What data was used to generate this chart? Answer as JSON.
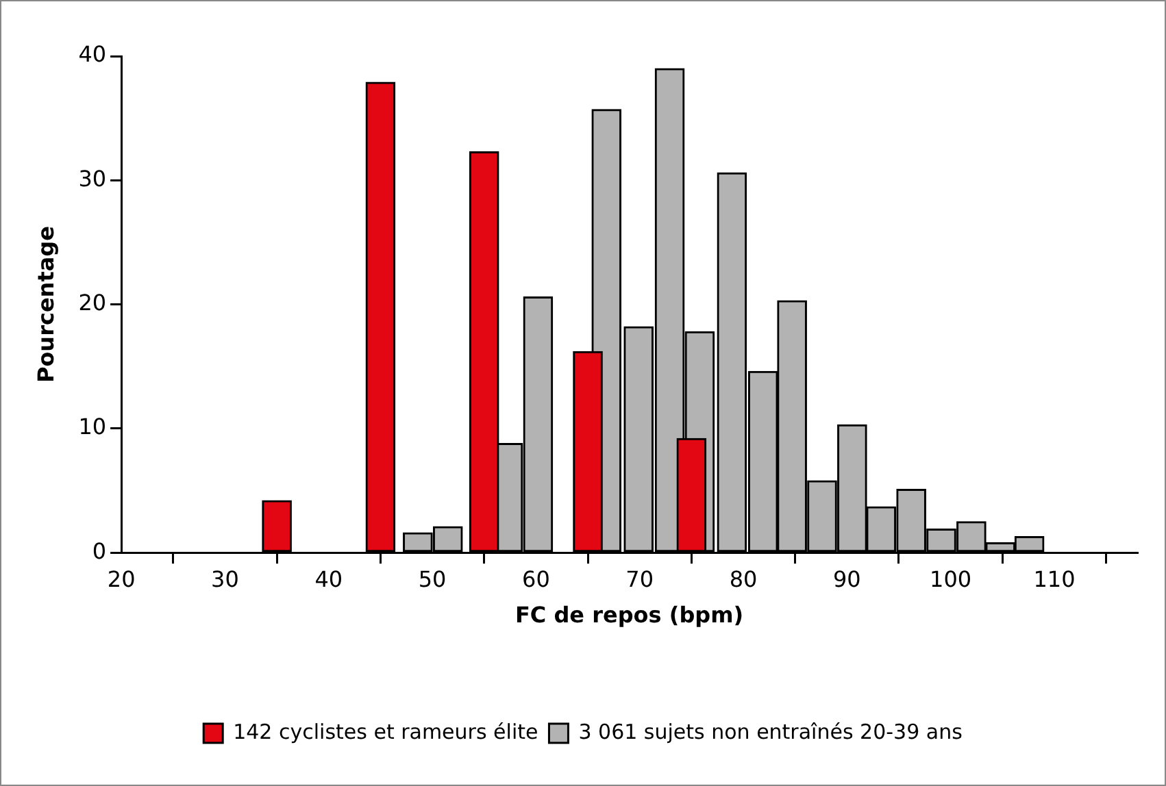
{
  "chart_data": {
    "type": "bar",
    "xlabel": "FC de repos (bpm)",
    "ylabel": "Pourcentage",
    "xlim": [
      20,
      118
    ],
    "xticks": [
      20,
      30,
      40,
      50,
      60,
      70,
      80,
      90,
      100,
      110
    ],
    "ylim": [
      0,
      40
    ],
    "yticks": [
      0,
      10,
      20,
      30,
      40
    ],
    "grid": false,
    "legend": "bottom",
    "series": [
      {
        "name": "142 cyclistes et rameurs élite",
        "color": "#e30613",
        "x": [
          35,
          45,
          55,
          65,
          75
        ],
        "values": [
          4.2,
          37.9,
          32.3,
          16.2,
          9.2
        ]
      },
      {
        "name": "3 061 sujets non entraînés 20-39 ans",
        "color": "#b3b3b3",
        "x": [
          48.6,
          51.5,
          57.3,
          60.2,
          66.8,
          69.9,
          72.9,
          75.8,
          78.9,
          81.9,
          84.7,
          87.6,
          90.5,
          93.3,
          96.2,
          99.1,
          102,
          104.8,
          107.6
        ],
        "values": [
          1.6,
          2.1,
          8.8,
          20.6,
          35.7,
          18.2,
          39,
          17.8,
          30.6,
          14.6,
          20.3,
          5.8,
          10.3,
          3.7,
          5.1,
          1.9,
          2.5,
          0.8,
          1.3
        ]
      }
    ]
  }
}
